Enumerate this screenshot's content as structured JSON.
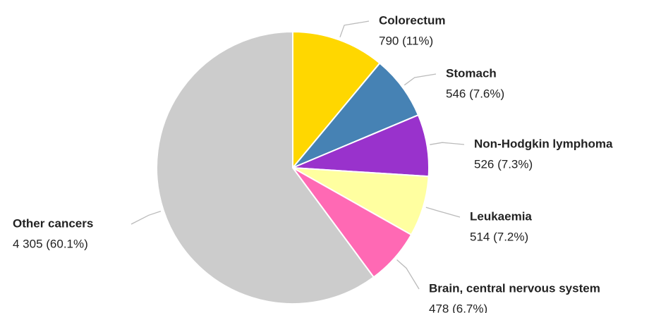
{
  "chart_data": {
    "type": "pie",
    "categories": [
      "Colorectum",
      "Stomach",
      "Non-Hodgkin lymphoma",
      "Leukaemia",
      "Brain, central nervous system",
      "Other cancers"
    ],
    "values": [
      790,
      546,
      526,
      514,
      478,
      4305
    ],
    "value_labels": [
      "790 (11%)",
      "546 (7.6%)",
      "526 (7.3%)",
      "514 (7.2%)",
      "478 (6.7%)",
      "4 305 (60.1%)"
    ],
    "colors": [
      "#ffd700",
      "#4682b4",
      "#9932cc",
      "#ffffa0",
      "#ff69b4",
      "#cccccc"
    ]
  }
}
